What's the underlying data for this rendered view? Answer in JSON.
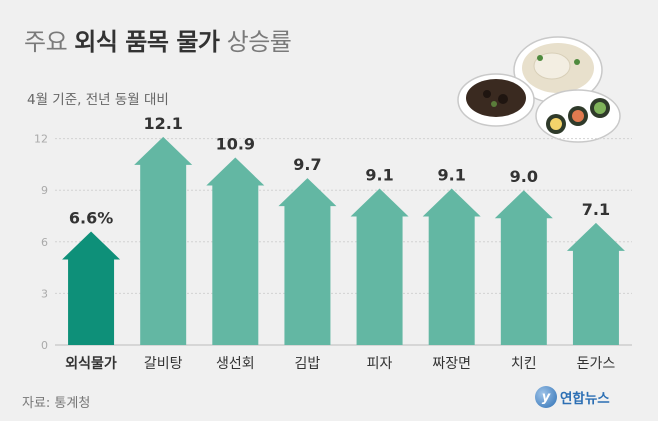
{
  "header": {
    "title_light_1": "주요 ",
    "title_bold": "외식 품목 물가",
    "title_light_2": " 상승률",
    "subtitle": "4월 기준, 전년 동월 대비"
  },
  "footer": {
    "source": "자료: 통계청",
    "logo_mark": "y",
    "logo_text": "연합뉴스"
  },
  "colors": {
    "highlight_bar": "#0e9079",
    "bar": "#63b7a3",
    "grid": "#d2d2d2",
    "tick_text": "#aaaaaa",
    "label_text": "#333333"
  },
  "chart_data": {
    "type": "bar",
    "categories": [
      "외식물가",
      "갈비탕",
      "생선회",
      "김밥",
      "피자",
      "짜장면",
      "치킨",
      "돈가스"
    ],
    "values": [
      6.6,
      12.1,
      10.9,
      9.7,
      9.1,
      9.1,
      9.0,
      7.1
    ],
    "value_labels": [
      "6.6%",
      "12.1",
      "10.9",
      "9.7",
      "9.1",
      "9.1",
      "9.0",
      "7.1"
    ],
    "highlight_index": 0,
    "ylim": [
      0,
      12
    ],
    "yticks": [
      0,
      3,
      6,
      9,
      12
    ],
    "grid": true,
    "bar_shape": "arrow"
  }
}
